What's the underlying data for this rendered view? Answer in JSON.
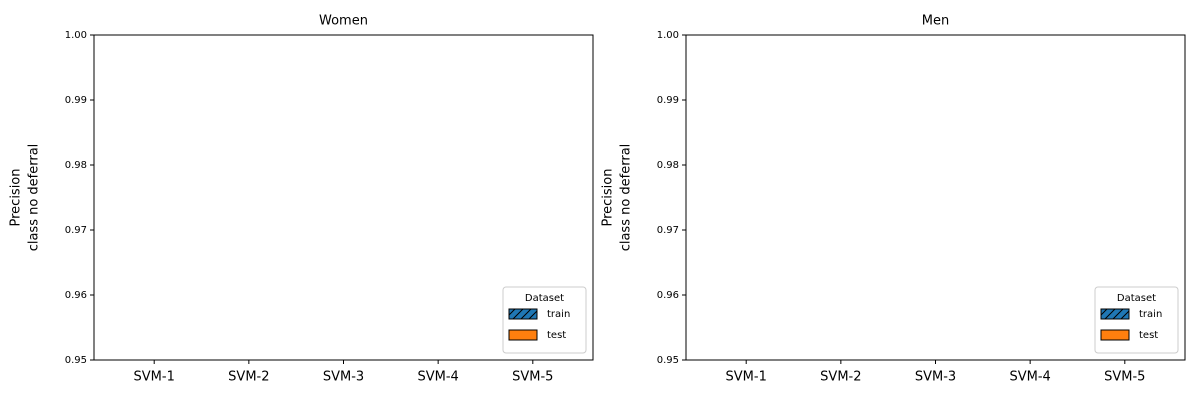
{
  "chart_data": [
    {
      "type": "bar",
      "title": "Women",
      "ylabel": [
        "Precision",
        "class no deferral"
      ],
      "categories": [
        "SVM-1",
        "SVM-2",
        "SVM-3",
        "SVM-4",
        "SVM-5"
      ],
      "series": [
        {
          "name": "train",
          "color": "#1f77b4",
          "hatch": "/",
          "values": [
            null,
            null,
            null,
            null,
            null
          ]
        },
        {
          "name": "test",
          "color": "#ff7f0e",
          "values": [
            null,
            null,
            null,
            null,
            null
          ]
        }
      ],
      "ylim": [
        0.95,
        1
      ],
      "yticks": [
        0.95,
        0.96,
        0.97,
        0.98,
        0.99,
        {
          "value": 1,
          "label": "1.00"
        }
      ],
      "legend_title": "Dataset",
      "legend": "lower right"
    },
    {
      "type": "bar",
      "title": "Men",
      "ylabel": [
        "Precision",
        "class no deferral"
      ],
      "categories": [
        "SVM-1",
        "SVM-2",
        "SVM-3",
        "SVM-4",
        "SVM-5"
      ],
      "series": [
        {
          "name": "train",
          "color": "#1f77b4",
          "hatch": "/",
          "values": [
            null,
            null,
            null,
            null,
            null
          ]
        },
        {
          "name": "test",
          "color": "#ff7f0e",
          "values": [
            null,
            null,
            null,
            null,
            null
          ]
        }
      ],
      "ylim": [
        0.95,
        1
      ],
      "yticks": [
        0.95,
        0.96,
        0.97,
        0.98,
        0.99,
        {
          "value": 1,
          "label": "1.00"
        }
      ],
      "legend_title": "Dataset",
      "legend": "lower right"
    }
  ]
}
